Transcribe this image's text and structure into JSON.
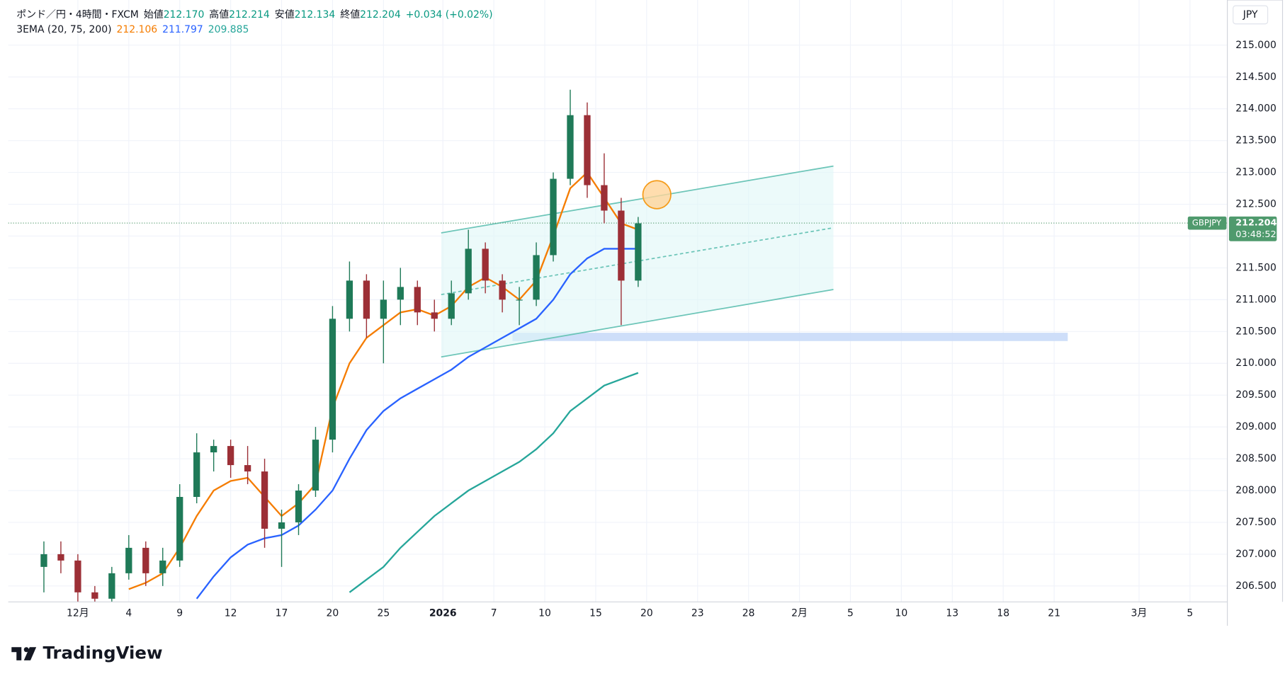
{
  "chart_data": {
    "type": "candlestick",
    "title": "ポンド／円・4時間・FXCM",
    "ohlc_header": [
      {
        "label": "始値",
        "value": "212.170"
      },
      {
        "label": "高値",
        "value": "212.214"
      },
      {
        "label": "安値",
        "value": "212.134"
      },
      {
        "label": "終値",
        "value": "212.204"
      }
    ],
    "change": "+0.034 (+0.02%)",
    "indicator": "3EMA (20, 75, 200)",
    "currency": "JPY",
    "symbol": "GBPJPY",
    "last_price": {
      "value": 212.204,
      "label": "212.204"
    },
    "countdown": "03:48:52",
    "brand": "TradingView",
    "up_color": "#1f7a58",
    "down_color": "#9c2f36",
    "xlim": [
      -4.1,
      67.7
    ],
    "ylim": [
      206.25,
      215.71
    ],
    "grid": true,
    "xticks": [
      {
        "value": 0,
        "label": "12月"
      },
      {
        "value": 3,
        "label": "4"
      },
      {
        "value": 6,
        "label": "9"
      },
      {
        "value": 9,
        "label": "12"
      },
      {
        "value": 12,
        "label": "17"
      },
      {
        "value": 15,
        "label": "20"
      },
      {
        "value": 18,
        "label": "25"
      },
      {
        "value": 21.5,
        "label": "2026"
      },
      {
        "value": 24.5,
        "label": "7"
      },
      {
        "value": 27.5,
        "label": "10"
      },
      {
        "value": 30.5,
        "label": "15"
      },
      {
        "value": 33.5,
        "label": "20"
      },
      {
        "value": 36.5,
        "label": "23"
      },
      {
        "value": 39.5,
        "label": "28"
      },
      {
        "value": 42.5,
        "label": "2月"
      },
      {
        "value": 45.5,
        "label": "5"
      },
      {
        "value": 48.5,
        "label": "10"
      },
      {
        "value": 51.5,
        "label": "13"
      },
      {
        "value": 54.5,
        "label": "18"
      },
      {
        "value": 57.5,
        "label": "21"
      },
      {
        "value": 62.5,
        "label": "3月"
      },
      {
        "value": 65.5,
        "label": "5"
      }
    ],
    "yticks": [
      {
        "value": 206.5,
        "label": "206.500"
      },
      {
        "value": 207,
        "label": "207.000"
      },
      {
        "value": 207.5,
        "label": "207.500"
      },
      {
        "value": 208,
        "label": "208.000"
      },
      {
        "value": 208.5,
        "label": "208.500"
      },
      {
        "value": 209,
        "label": "209.000"
      },
      {
        "value": 209.5,
        "label": "209.500"
      },
      {
        "value": 210,
        "label": "210.000"
      },
      {
        "value": 210.5,
        "label": "210.500"
      },
      {
        "value": 211,
        "label": "211.000"
      },
      {
        "value": 211.5,
        "label": "211.500"
      },
      {
        "value": 212,
        "label": "212.000"
      },
      {
        "value": 212.5,
        "label": "212.500"
      },
      {
        "value": 213,
        "label": "213.000"
      },
      {
        "value": 213.5,
        "label": "213.500"
      },
      {
        "value": 214,
        "label": "214.000"
      },
      {
        "value": 214.5,
        "label": "214.500"
      },
      {
        "value": 215,
        "label": "215.000"
      }
    ],
    "x": [
      -2,
      -1,
      0,
      1,
      2,
      3,
      4,
      5,
      6,
      7,
      8,
      9,
      10,
      11,
      12,
      13,
      14,
      15,
      16,
      17,
      18,
      19,
      20,
      21,
      22,
      23,
      24,
      25,
      26,
      27,
      28,
      29,
      30,
      31,
      32,
      33
    ],
    "open": [
      206.8,
      207.0,
      206.9,
      206.4,
      206.3,
      206.7,
      207.1,
      206.7,
      206.9,
      207.9,
      208.6,
      208.7,
      208.4,
      208.3,
      207.4,
      207.5,
      208.0,
      208.8,
      210.7,
      211.3,
      210.7,
      211.0,
      211.2,
      210.8,
      210.7,
      211.1,
      211.8,
      211.3,
      211.0,
      211.0,
      211.7,
      212.9,
      213.9,
      212.8,
      212.4,
      211.3
    ],
    "high": [
      207.2,
      207.2,
      207.0,
      206.5,
      206.8,
      207.3,
      207.2,
      207.1,
      208.1,
      208.9,
      208.8,
      208.8,
      208.7,
      208.5,
      207.7,
      208.1,
      209.0,
      210.9,
      211.6,
      211.4,
      211.3,
      211.5,
      211.3,
      211.0,
      211.3,
      212.1,
      211.9,
      211.4,
      211.2,
      211.9,
      213.0,
      214.3,
      214.1,
      213.3,
      212.6,
      212.3
    ],
    "low": [
      206.4,
      206.7,
      206.2,
      206.1,
      206.2,
      206.6,
      206.5,
      206.5,
      206.8,
      207.8,
      208.3,
      208.2,
      208.1,
      207.1,
      206.8,
      207.3,
      207.9,
      208.6,
      210.5,
      210.4,
      210.0,
      210.6,
      210.6,
      210.5,
      210.6,
      211.0,
      211.1,
      210.8,
      210.6,
      210.9,
      211.6,
      212.8,
      212.6,
      212.2,
      210.6,
      211.2
    ],
    "close": [
      207.0,
      206.9,
      206.4,
      206.3,
      206.7,
      207.1,
      206.7,
      206.9,
      207.9,
      208.6,
      208.7,
      208.4,
      208.3,
      207.4,
      207.5,
      208.0,
      208.8,
      210.7,
      211.3,
      210.7,
      211.0,
      211.2,
      210.8,
      210.7,
      211.1,
      211.8,
      211.3,
      211.0,
      211.0,
      211.7,
      212.9,
      213.9,
      212.8,
      212.4,
      211.3,
      212.2
    ],
    "series": [
      {
        "color": "#f57c00",
        "value_label": "212.106",
        "x": [
          3,
          4,
          5,
          6,
          7,
          8,
          9,
          10,
          11,
          12,
          13,
          14,
          15,
          16,
          17,
          18,
          19,
          20,
          21,
          22,
          23,
          24,
          25,
          26,
          27,
          28,
          29,
          30,
          31,
          32,
          33
        ],
        "values": [
          206.45,
          206.55,
          206.7,
          207.1,
          207.6,
          208.0,
          208.15,
          208.2,
          207.9,
          207.6,
          207.8,
          208.1,
          209.3,
          210.0,
          210.4,
          210.6,
          210.8,
          210.85,
          210.75,
          210.9,
          211.2,
          211.35,
          211.2,
          211.0,
          211.3,
          212.0,
          212.75,
          213.0,
          212.6,
          212.2,
          212.1
        ]
      },
      {
        "color": "#2962ff",
        "value_label": "211.797",
        "x": [
          7,
          8,
          9,
          10,
          11,
          12,
          13,
          14,
          15,
          16,
          17,
          18,
          19,
          20,
          21,
          22,
          23,
          24,
          25,
          26,
          27,
          28,
          29,
          30,
          31,
          32,
          33
        ],
        "values": [
          206.3,
          206.65,
          206.95,
          207.15,
          207.25,
          207.3,
          207.45,
          207.7,
          208.0,
          208.5,
          208.95,
          209.25,
          209.45,
          209.6,
          209.75,
          209.9,
          210.1,
          210.25,
          210.4,
          210.55,
          210.7,
          211.0,
          211.4,
          211.65,
          211.8,
          211.8,
          211.8
        ]
      },
      {
        "color": "#26a69a",
        "value_label": "209.885",
        "x": [
          16,
          17,
          18,
          19,
          20,
          21,
          22,
          23,
          24,
          25,
          26,
          27,
          28,
          29,
          30,
          31,
          32,
          33
        ],
        "values": [
          206.4,
          206.6,
          206.8,
          207.1,
          207.35,
          207.6,
          207.8,
          208.0,
          208.15,
          208.3,
          208.45,
          208.65,
          208.9,
          209.25,
          209.45,
          209.65,
          209.75,
          209.85
        ]
      }
    ],
    "drawings": {
      "channel": {
        "x": [
          21.4,
          44.5
        ],
        "upper": [
          212.05,
          213.1
        ],
        "middle": [
          211.08,
          212.13
        ],
        "lower": [
          210.1,
          211.16
        ]
      },
      "zone": {
        "x": [
          25.6,
          58.3
        ],
        "y": [
          210.35,
          210.48
        ]
      },
      "circle": {
        "x": 34.1,
        "y": 212.65
      }
    }
  }
}
